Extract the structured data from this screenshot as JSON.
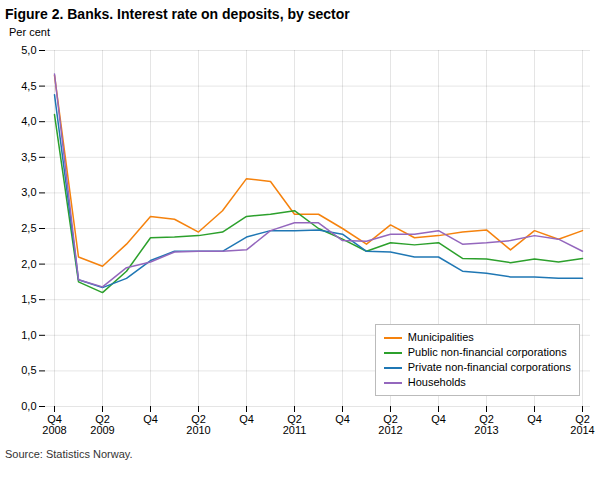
{
  "chart_data": {
    "type": "line",
    "title": "Figure 2. Banks. Interest rate on deposits, by sector",
    "ylabel": "Per cent",
    "source": "Source: Statistics Norway.",
    "categories": [
      "Q4\n2008",
      null,
      "Q2\n2009",
      null,
      "Q4",
      null,
      "Q2\n2010",
      null,
      "Q4",
      null,
      "Q2\n2011",
      null,
      "Q4",
      null,
      "Q2\n2012",
      null,
      "Q4",
      null,
      "Q2\n2013",
      null,
      "Q4",
      null,
      "Q2\n2014"
    ],
    "series": [
      {
        "name": "Municipalities",
        "color": "#F5820D",
        "values": [
          4.65,
          2.1,
          1.97,
          2.28,
          2.67,
          2.63,
          2.45,
          2.75,
          3.2,
          3.16,
          2.7,
          2.7,
          2.5,
          2.28,
          2.55,
          2.37,
          2.4,
          2.45,
          2.48,
          2.2,
          2.47,
          2.35,
          2.47
        ]
      },
      {
        "name": "Public non-financial corporations",
        "color": "#2CA02C",
        "values": [
          4.1,
          1.75,
          1.6,
          1.9,
          2.37,
          2.38,
          2.4,
          2.45,
          2.67,
          2.7,
          2.75,
          2.5,
          2.35,
          2.18,
          2.3,
          2.27,
          2.3,
          2.08,
          2.07,
          2.02,
          2.07,
          2.03,
          2.08
        ]
      },
      {
        "name": "Private non-financial corporations",
        "color": "#1F77B4",
        "values": [
          4.38,
          1.78,
          1.67,
          1.8,
          2.05,
          2.18,
          2.18,
          2.18,
          2.38,
          2.47,
          2.47,
          2.48,
          2.42,
          2.18,
          2.17,
          2.1,
          2.1,
          1.9,
          1.87,
          1.82,
          1.82,
          1.8,
          1.8
        ]
      },
      {
        "name": "Households",
        "color": "#9467BD",
        "values": [
          4.67,
          1.78,
          1.68,
          1.95,
          2.03,
          2.17,
          2.18,
          2.18,
          2.2,
          2.47,
          2.58,
          2.58,
          2.33,
          2.32,
          2.42,
          2.42,
          2.47,
          2.28,
          2.3,
          2.33,
          2.4,
          2.35,
          2.18
        ]
      }
    ],
    "ylim": [
      0.0,
      5.0
    ],
    "yticks": [
      {
        "value": 0.0,
        "label": "0,0"
      },
      {
        "value": 0.5,
        "label": "0,5"
      },
      {
        "value": 1.0,
        "label": "1,0"
      },
      {
        "value": 1.5,
        "label": "1,5"
      },
      {
        "value": 2.0,
        "label": "2,0"
      },
      {
        "value": 2.5,
        "label": "2,5"
      },
      {
        "value": 3.0,
        "label": "3,0"
      },
      {
        "value": 3.5,
        "label": "3,5"
      },
      {
        "value": 4.0,
        "label": "4,0"
      },
      {
        "value": 4.5,
        "label": "4,5"
      },
      {
        "value": 5.0,
        "label": "5,0"
      }
    ],
    "grid": true,
    "legend": "lower right"
  }
}
